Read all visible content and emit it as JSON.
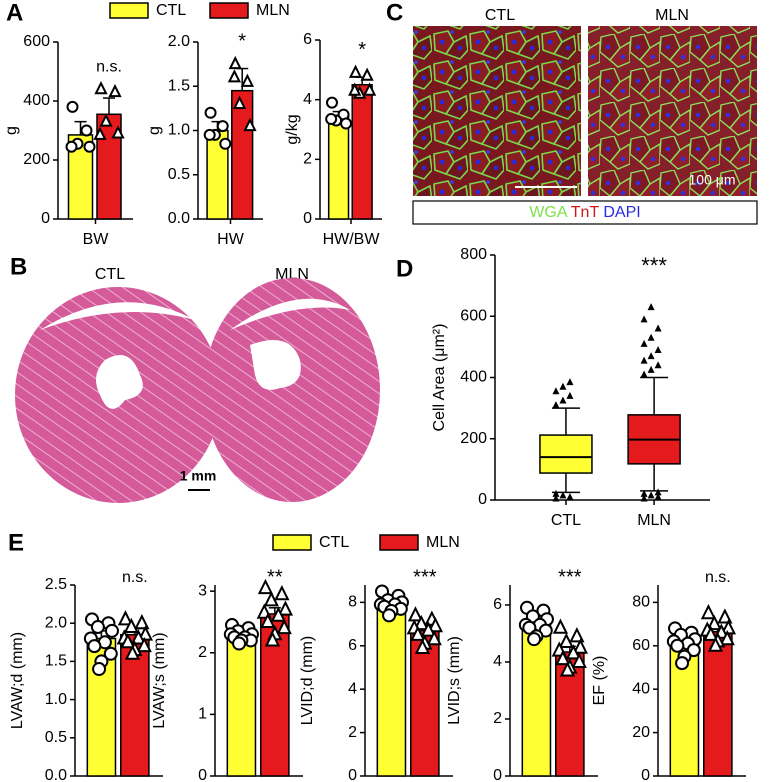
{
  "figure": {
    "panel_labels": [
      "A",
      "B",
      "C",
      "D",
      "E"
    ],
    "histology": {
      "labels": [
        "CTL",
        "MLN"
      ],
      "scale_bar": "1 mm"
    },
    "micrograph": {
      "labels": [
        "CTL",
        "MLN"
      ],
      "scale_bar": "100 μm",
      "stains": [
        {
          "name": "WGA",
          "color": "#7de04a"
        },
        {
          "name": "TnT",
          "color": "#d01818"
        },
        {
          "name": "DAPI",
          "color": "#2a2ae0"
        }
      ]
    }
  },
  "chart_data": [
    {
      "type": "bar-group",
      "series": [
        {
          "name": "CTL",
          "color": "#ffff33"
        },
        {
          "name": "MLN",
          "color": "#e41a1c"
        }
      ],
      "panels": [
        {
          "categories": [
            "BW"
          ],
          "ylabel": "g",
          "ylim": [
            0,
            600
          ],
          "yticks": [
            0,
            200,
            400,
            600
          ],
          "means": [
            285,
            355
          ],
          "errors": [
            45,
            55
          ],
          "points": [
            [
              380,
              300,
              255,
              245,
              245
            ],
            [
              440,
              430,
              330,
              290,
              285
            ]
          ],
          "annotation": "n.s."
        },
        {
          "categories": [
            "HW"
          ],
          "ylabel": "g",
          "ylim": [
            0,
            2
          ],
          "yticks": [
            {
              "value": 0,
              "label": "0.0"
            },
            0.5,
            {
              "value": 1,
              "label": "1.0"
            },
            1.5,
            {
              "value": 2,
              "label": "2.0"
            }
          ],
          "means": [
            1.0,
            1.45
          ],
          "errors": [
            0.1,
            0.25
          ],
          "points": [
            [
              1.2,
              1.05,
              0.95,
              0.85,
              0.95
            ],
            [
              1.75,
              1.55,
              1.3,
              1.05,
              1.6
            ]
          ],
          "annotation": "*"
        },
        {
          "categories": [
            "HW/BW"
          ],
          "ylabel": "g/kg",
          "ylim": [
            0,
            6
          ],
          "yticks": [
            0,
            2,
            4,
            6
          ],
          "means": [
            3.45,
            4.5
          ],
          "errors": [
            0.15,
            0.25
          ],
          "points": [
            [
              3.9,
              3.5,
              3.3,
              3.2,
              3.35
            ],
            [
              4.9,
              4.8,
              4.2,
              4.3,
              4.3
            ]
          ],
          "annotation": "*"
        }
      ]
    },
    {
      "type": "box",
      "categories": [
        "CTL",
        "MLN"
      ],
      "ylabel": "Cell Area (μm²)",
      "ylim": [
        0,
        800
      ],
      "yticks": [
        0,
        200,
        400,
        600,
        800
      ],
      "annotation": "***",
      "boxes": [
        {
          "color": "#ffff33",
          "whislo": 25,
          "q1": 88,
          "med": 140,
          "q3": 212,
          "whishi": 300,
          "outliers": [
            310,
            325,
            340,
            355,
            370,
            385,
            20,
            15,
            10,
            5
          ]
        },
        {
          "color": "#e41a1c",
          "whislo": 30,
          "q1": 118,
          "med": 197,
          "q3": 278,
          "whishi": 400,
          "outliers": [
            410,
            425,
            440,
            455,
            470,
            490,
            510,
            530,
            560,
            590,
            630,
            25,
            20,
            15,
            10,
            5
          ]
        }
      ]
    },
    {
      "type": "bar-group",
      "series": [
        {
          "name": "CTL",
          "color": "#ffff33"
        },
        {
          "name": "MLN",
          "color": "#e41a1c"
        }
      ],
      "panels": [
        {
          "ylabel": "LVAW;d (mm)",
          "ylim": [
            0,
            2.5
          ],
          "yticks": [
            {
              "value": 0,
              "label": "0.0"
            },
            0.5,
            {
              "value": 1,
              "label": "1.0"
            },
            1.5,
            {
              "value": 2,
              "label": "2.0"
            },
            2.5
          ],
          "means": [
            1.8,
            1.85
          ],
          "errors": [
            0.1,
            0.08
          ],
          "points": [
            [
              2.05,
              2.0,
              1.95,
              1.9,
              1.8,
              1.75,
              1.7,
              1.6,
              1.5,
              1.4
            ],
            [
              2.05,
              2.0,
              1.95,
              1.85,
              1.8,
              1.8,
              1.75,
              1.7,
              1.65,
              1.6
            ]
          ],
          "annotation": "n.s."
        },
        {
          "ylabel": "LVAW;s (mm)",
          "ylim": [
            0,
            3.1
          ],
          "yticks": [
            0,
            1,
            2,
            3
          ],
          "means": [
            2.3,
            2.63
          ],
          "errors": [
            0.05,
            0.1
          ],
          "points": [
            [
              2.45,
              2.4,
              2.35,
              2.3,
              2.3,
              2.25,
              2.25,
              2.2,
              2.2,
              2.15
            ],
            [
              3.05,
              2.95,
              2.85,
              2.7,
              2.65,
              2.6,
              2.5,
              2.4,
              2.3,
              2.2
            ]
          ],
          "annotation": "**"
        },
        {
          "ylabel": "LVID;d (mm)",
          "ylim": [
            0,
            8.8
          ],
          "yticks": [
            0,
            2,
            4,
            6,
            8
          ],
          "means": [
            7.9,
            6.7
          ],
          "errors": [
            0.12,
            0.2
          ],
          "points": [
            [
              8.5,
              8.3,
              8.1,
              8.0,
              7.9,
              7.9,
              7.8,
              7.7,
              7.6,
              7.4
            ],
            [
              7.4,
              7.2,
              7.0,
              6.9,
              6.8,
              6.7,
              6.5,
              6.3,
              6.1,
              5.9
            ]
          ],
          "annotation": "***"
        },
        {
          "ylabel": "LVID;s (mm)",
          "ylim": [
            0,
            6.7
          ],
          "yticks": [
            0,
            2,
            4,
            6
          ],
          "means": [
            5.3,
            4.35
          ],
          "errors": [
            0.15,
            0.2
          ],
          "points": [
            [
              5.9,
              5.8,
              5.6,
              5.5,
              5.3,
              5.3,
              5.2,
              5.1,
              4.9,
              4.8
            ],
            [
              5.2,
              4.9,
              4.7,
              4.5,
              4.4,
              4.3,
              4.1,
              4.0,
              3.8,
              3.7
            ]
          ],
          "annotation": "***"
        },
        {
          "ylabel": "EF (%)",
          "ylim": [
            0,
            88
          ],
          "yticks": [
            0,
            20,
            40,
            60,
            80
          ],
          "means": [
            61,
            66.5
          ],
          "errors": [
            2,
            1.5
          ],
          "points": [
            [
              68,
              66,
              65,
              63,
              62,
              61,
              60,
              58,
              55,
              52
            ],
            [
              75,
              73,
              70,
              68,
              67,
              66,
              65,
              63,
              62,
              60
            ]
          ],
          "annotation": "n.s."
        }
      ]
    }
  ]
}
